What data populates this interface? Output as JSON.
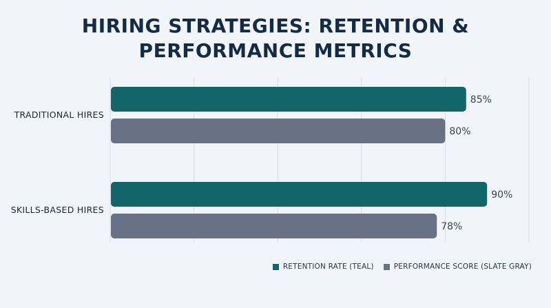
{
  "title_lines": [
    "HIRING STRATEGIES: RETENTION &",
    "PERFORMANCE METRICS"
  ],
  "colors": {
    "teal": "#12666a",
    "slate": "#687287",
    "grid": "#d8dde4"
  },
  "chart_data": {
    "type": "bar",
    "orientation": "horizontal",
    "title": "HIRING STRATEGIES: RETENTION & PERFORMANCE METRICS",
    "categories": [
      "TRADITIONAL HIRES",
      "SKILLS-BASED HIRES"
    ],
    "series": [
      {
        "name": "RETENTION RATE (TEAL)",
        "color": "#12666a",
        "values": [
          85,
          90
        ],
        "labels": [
          "85%",
          "90%"
        ]
      },
      {
        "name": "PERFORMANCE SCORE (SLATE GRAY)",
        "color": "#687287",
        "values": [
          80,
          78
        ],
        "labels": [
          "80%",
          "78%"
        ]
      }
    ],
    "xlim": [
      0,
      100
    ],
    "grid": true,
    "legend": "bottom-right"
  }
}
